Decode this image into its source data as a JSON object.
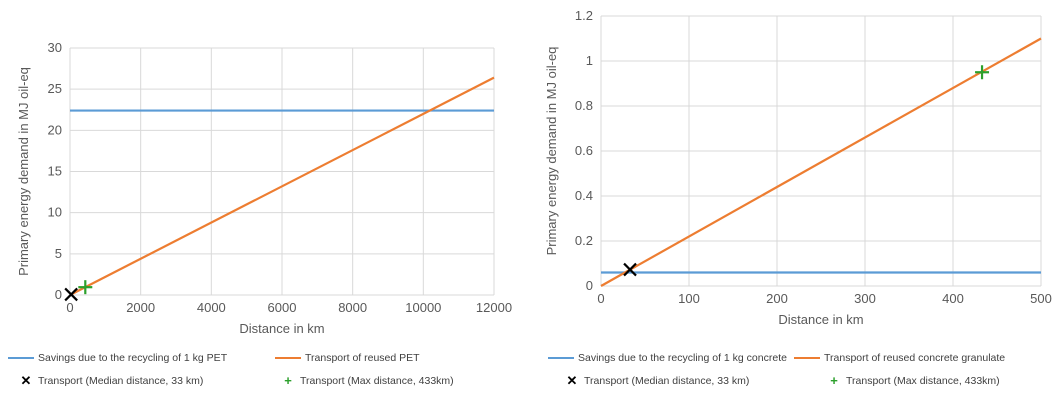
{
  "colors": {
    "savings": "#5B9BD5",
    "transport": "#ED7D31",
    "median": "#000000",
    "max": "#2CA02C",
    "grid": "#D9D9D9",
    "axis_text": "#595959"
  },
  "chart_data": [
    {
      "type": "line",
      "xlabel": "Distance in km",
      "ylabel": "Primary energy demand in MJ oil-eq",
      "xlim": [
        0,
        12000
      ],
      "ylim": [
        0,
        30
      ],
      "xticks": [
        0,
        2000,
        4000,
        6000,
        8000,
        10000,
        12000
      ],
      "yticks": [
        0,
        5,
        10,
        15,
        20,
        25,
        30
      ],
      "grid": true,
      "legend_position": "bottom",
      "series": [
        {
          "name": "Savings due to the recycling of 1 kg PET",
          "kind": "line",
          "color": "#5B9BD5",
          "x": [
            0,
            12000
          ],
          "y": [
            22.4,
            22.4
          ]
        },
        {
          "name": "Transport of reused PET",
          "kind": "line",
          "color": "#ED7D31",
          "x": [
            0,
            12000
          ],
          "y": [
            0,
            26.4
          ]
        },
        {
          "name": "Transport (Median distance, 33 km)",
          "kind": "marker",
          "marker": "x",
          "color": "#000000",
          "x": [
            33
          ],
          "y": [
            0.07
          ]
        },
        {
          "name": "Transport (Max distance, 433km)",
          "kind": "marker",
          "marker": "+",
          "color": "#2CA02C",
          "x": [
            433
          ],
          "y": [
            0.95
          ]
        }
      ]
    },
    {
      "type": "line",
      "xlabel": "Distance in km",
      "ylabel": "Primary energy demand in MJ oil-eq",
      "xlim": [
        0,
        500
      ],
      "ylim": [
        0,
        1.2
      ],
      "xticks": [
        0,
        100,
        200,
        300,
        400,
        500
      ],
      "yticks": [
        0,
        0.2,
        0.4,
        0.6,
        0.8,
        1,
        1.2
      ],
      "grid": true,
      "legend_position": "bottom",
      "series": [
        {
          "name": "Savings due to the recycling of 1 kg concrete",
          "kind": "line",
          "color": "#5B9BD5",
          "x": [
            0,
            500
          ],
          "y": [
            0.06,
            0.06
          ]
        },
        {
          "name": "Transport of reused concrete granulate",
          "kind": "line",
          "color": "#ED7D31",
          "x": [
            0,
            500
          ],
          "y": [
            0,
            1.1
          ]
        },
        {
          "name": "Transport (Median distance, 33 km)",
          "kind": "marker",
          "marker": "x",
          "color": "#000000",
          "x": [
            33
          ],
          "y": [
            0.073
          ]
        },
        {
          "name": "Transport (Max distance, 433km)",
          "kind": "marker",
          "marker": "+",
          "color": "#2CA02C",
          "x": [
            433
          ],
          "y": [
            0.95
          ]
        }
      ]
    }
  ]
}
